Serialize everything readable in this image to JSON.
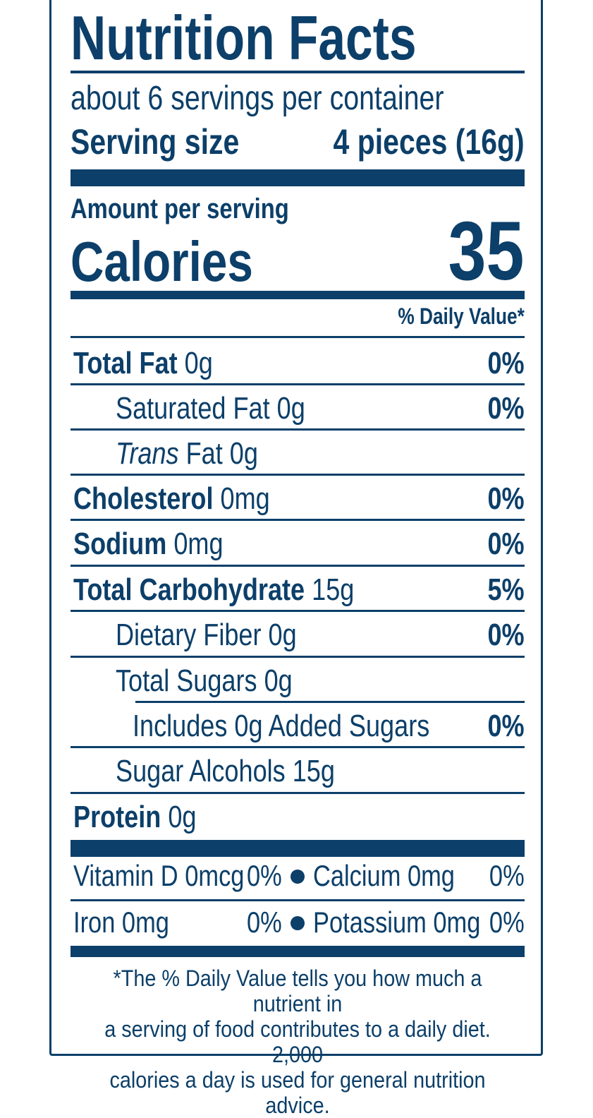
{
  "header": {
    "title": "Nutrition Facts",
    "servings_per_container": "about 6 servings per container",
    "serving_size_label": "Serving size",
    "serving_size_value": "4 pieces (16g)"
  },
  "calories": {
    "amount_label": "Amount per serving",
    "label": "Calories",
    "value": "35"
  },
  "daily_value_header": "% Daily Value*",
  "nutrients": [
    {
      "name": "Total Fat",
      "amount": "0g",
      "dv": "0%"
    },
    {
      "name": "Saturated Fat",
      "amount": "0g",
      "dv": "0%"
    },
    {
      "name": "Trans",
      "name_rest": "Fat",
      "amount": "0g",
      "dv": ""
    },
    {
      "name": "Cholesterol",
      "amount": "0mg",
      "dv": "0%"
    },
    {
      "name": "Sodium",
      "amount": "0mg",
      "dv": "0%"
    },
    {
      "name": "Total Carbohydrate",
      "amount": "15g",
      "dv": "5%"
    },
    {
      "name": "Dietary Fiber",
      "amount": "0g",
      "dv": "0%"
    },
    {
      "name": "Total Sugars",
      "amount": "0g",
      "dv": ""
    },
    {
      "name": "Includes 0g Added Sugars",
      "amount": "",
      "dv": "0%"
    },
    {
      "name": "Sugar Alcohols",
      "amount": "15g",
      "dv": ""
    },
    {
      "name": "Protein",
      "amount": "0g",
      "dv": ""
    }
  ],
  "minerals": [
    {
      "name": "Vitamin D 0mcg",
      "dv": "0%"
    },
    {
      "name": "Calcium 0mg",
      "dv": "0%"
    },
    {
      "name": "Iron 0mg",
      "dv": "0%"
    },
    {
      "name": "Potassium 0mg",
      "dv": "0%"
    }
  ],
  "footnote": {
    "line1": "*The % Daily Value tells you how much a nutrient in",
    "line2": "a serving of food contributes to a daily diet. 2,000",
    "line3": "calories a day is used for general nutrition advice."
  }
}
